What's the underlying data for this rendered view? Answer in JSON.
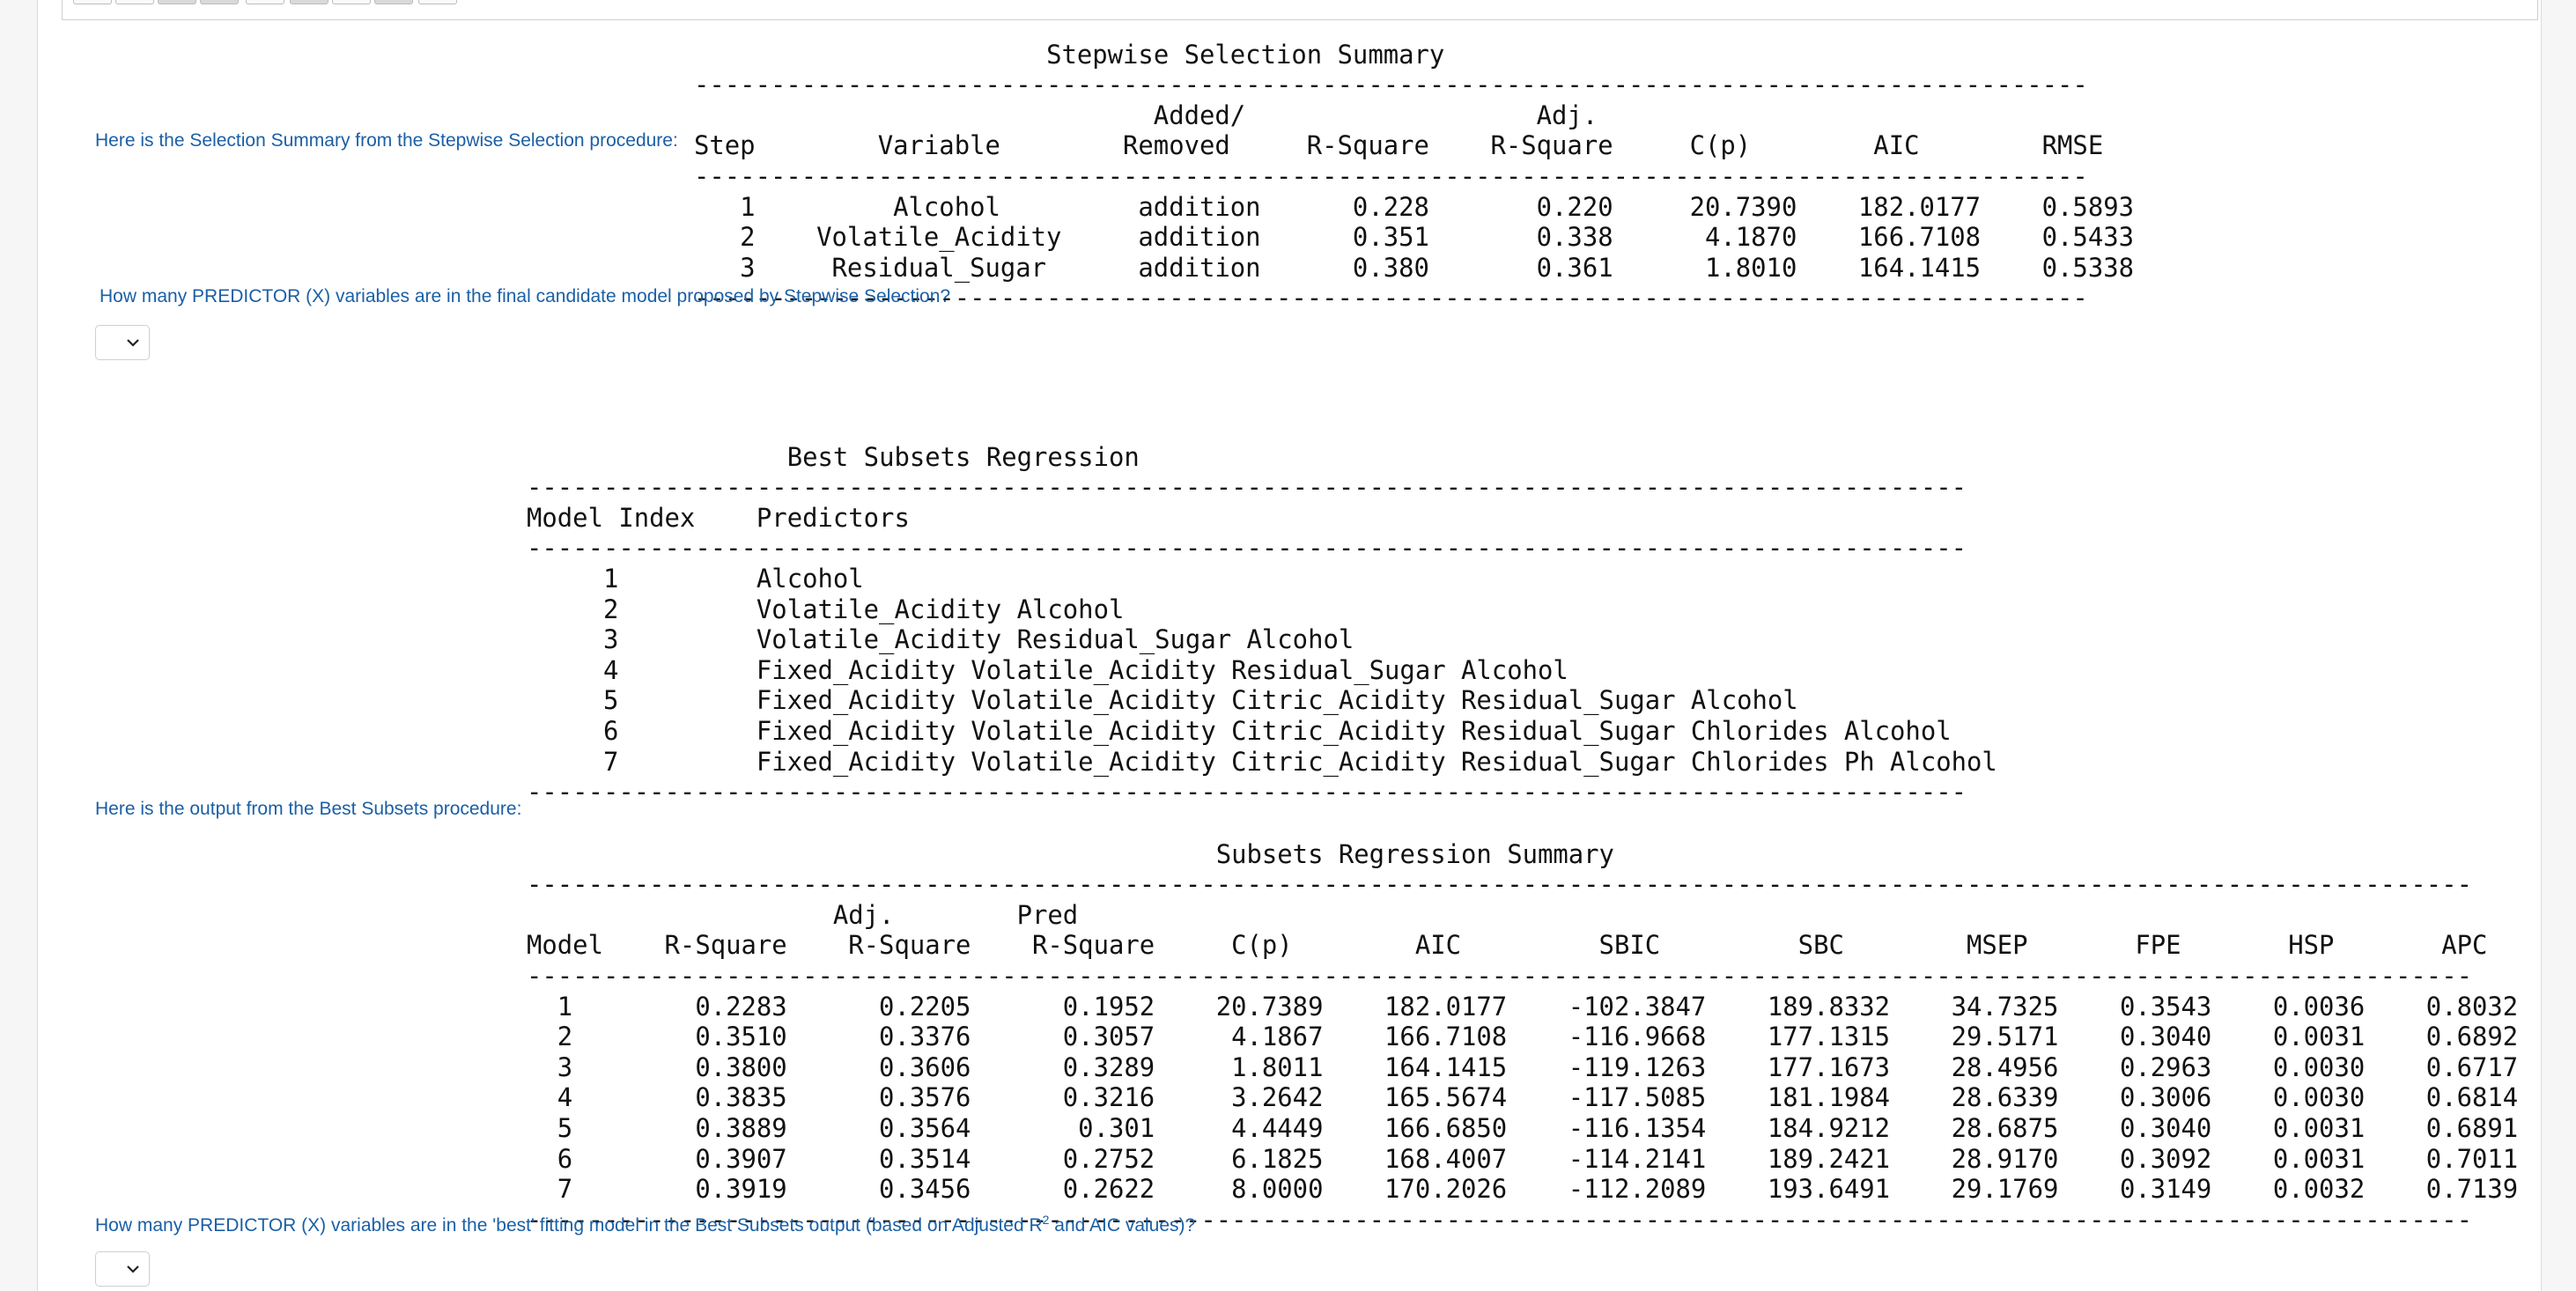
{
  "stepwise": {
    "title": "Stepwise Selection Summary",
    "intro": "Here is the Selection Summary from the Stepwise Selection procedure:",
    "header_line1": "                              Added/                   Adj.",
    "header_line2": "Step        Variable        Removed     R-Square    R-Square     C(p)        AIC        RMSE",
    "rows": [
      "   1         Alcohol         addition      0.228       0.220     20.7390    182.0177    0.5893",
      "   2    Volatile_Acidity     addition      0.351       0.338      4.1870    166.7108    0.5433",
      "   3     Residual_Sugar      addition      0.380       0.361      1.8010    164.1415    0.5338"
    ],
    "question": "How many PREDICTOR (X) variables are in the final candidate model proposed by Stepwise Selection?"
  },
  "best_subsets": {
    "title": "Best Subsets Regression",
    "header": "Model Index    Predictors",
    "rows": [
      "     1         Alcohol",
      "     2         Volatile_Acidity Alcohol",
      "     3         Volatile_Acidity Residual_Sugar Alcohol",
      "     4         Fixed_Acidity Volatile_Acidity Residual_Sugar Alcohol",
      "     5         Fixed_Acidity Volatile_Acidity Citric_Acidity Residual_Sugar Alcohol",
      "     6         Fixed_Acidity Volatile_Acidity Citric_Acidity Residual_Sugar Chlorides Alcohol",
      "     7         Fixed_Acidity Volatile_Acidity Citric_Acidity Residual_Sugar Chlorides Ph Alcohol"
    ]
  },
  "subsets_summary": {
    "intro": "Here is the output from the Best Subsets procedure:",
    "title": "Subsets Regression Summary",
    "header_line1": "                    Adj.        Pred",
    "header_line2": "Model    R-Square    R-Square    R-Square     C(p)        AIC         SBIC         SBC        MSEP       FPE       HSP       APC",
    "rows": [
      "  1        0.2283      0.2205      0.1952    20.7389    182.0177    -102.3847    189.8332    34.7325    0.3543    0.0036    0.8032",
      "  2        0.3510      0.3376      0.3057     4.1867    166.7108    -116.9668    177.1315    29.5171    0.3040    0.0031    0.6892",
      "  3        0.3800      0.3606      0.3289     1.8011    164.1415    -119.1263    177.1673    28.4956    0.2963    0.0030    0.6717",
      "  4        0.3835      0.3576      0.3216     3.2642    165.5674    -117.5085    181.1984    28.6339    0.3006    0.0030    0.6814",
      "  5        0.3889      0.3564       0.301     4.4449    166.6850    -116.1354    184.9212    28.6875    0.3040    0.0031    0.6891",
      "  6        0.3907      0.3514      0.2752     6.1825    168.4007    -114.2141    189.2421    28.9170    0.3092    0.0031    0.7011",
      "  7        0.3919      0.3456      0.2622     8.0000    170.2026    -112.2089    193.6491    29.1769    0.3149    0.0032    0.7139"
    ],
    "question_before": "How many PREDICTOR (X) variables are in the 'best' fitting model in the Best Subsets output (based on Adjusted R",
    "question_sup": "2",
    "question_after": " and AIC values)?"
  },
  "colors": {
    "question_text": "#1a5fa6",
    "mono_text": "#111111",
    "page_bg": "#f6f6f6",
    "panel_bg": "#ffffff"
  },
  "icons": {
    "dropdown": "chevron-down-icon"
  }
}
